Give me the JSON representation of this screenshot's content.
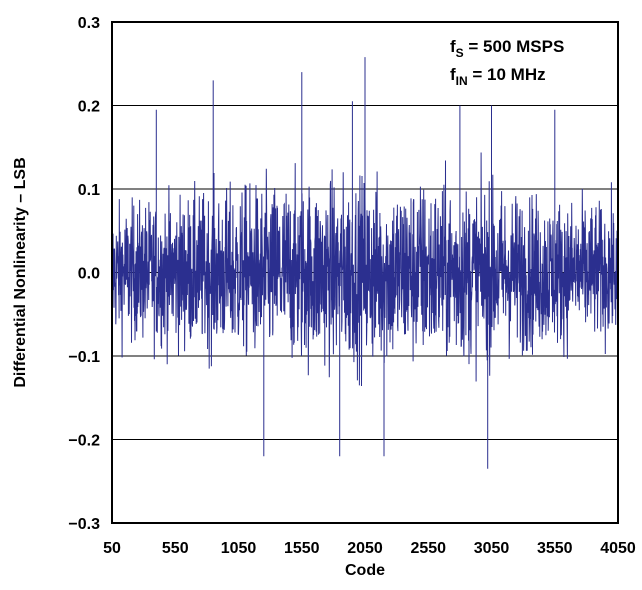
{
  "chart_data": {
    "type": "line",
    "title": "",
    "xlabel": "Code",
    "ylabel": "Differential Nonlinearity – LSB",
    "xlim": [
      50,
      4050
    ],
    "ylim": [
      -0.3,
      0.3
    ],
    "x_ticks": [
      "50",
      "550",
      "1050",
      "1550",
      "2050",
      "2550",
      "3050",
      "3550",
      "4050"
    ],
    "y_ticks": [
      "−0.3",
      "−0.2",
      "−0.1",
      "0.0",
      "0.1",
      "0.2",
      "0.3"
    ],
    "y_gridlines": [
      -0.2,
      -0.1,
      0.0,
      0.1,
      0.2
    ],
    "grid": "horizontal",
    "series": [
      {
        "color": "#2b2f8f",
        "description_peaks": [
          {
            "x": 400,
            "y": 0.195
          },
          {
            "x": 850,
            "y": 0.23
          },
          {
            "x": 1550,
            "y": 0.24
          },
          {
            "x": 1950,
            "y": 0.205
          },
          {
            "x": 2050,
            "y": 0.258
          },
          {
            "x": 2800,
            "y": 0.2
          },
          {
            "x": 3050,
            "y": 0.2
          },
          {
            "x": 3550,
            "y": 0.195
          },
          {
            "x": 1250,
            "y": -0.22
          },
          {
            "x": 1850,
            "y": -0.22
          },
          {
            "x": 2200,
            "y": -0.22
          },
          {
            "x": 3020,
            "y": -0.235
          }
        ],
        "typical_envelope": [
          -0.09,
          0.09
        ]
      }
    ],
    "annotations": [
      {
        "main": "f",
        "sub": "S",
        "rest": " = 500 MSPS"
      },
      {
        "main": "f",
        "sub": "IN",
        "rest": " = 10 MHz"
      }
    ]
  }
}
